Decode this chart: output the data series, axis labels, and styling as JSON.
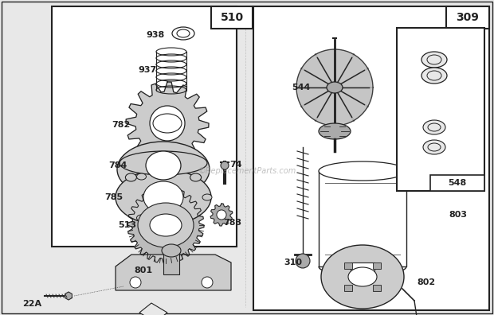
{
  "bg_color": "#e8e8e8",
  "white": "#ffffff",
  "dark": "#222222",
  "mid": "#666666",
  "light_gray": "#aaaaaa",
  "watermark": "©ReplacementParts.com",
  "figsize": [
    6.2,
    3.96
  ],
  "dpi": 100
}
